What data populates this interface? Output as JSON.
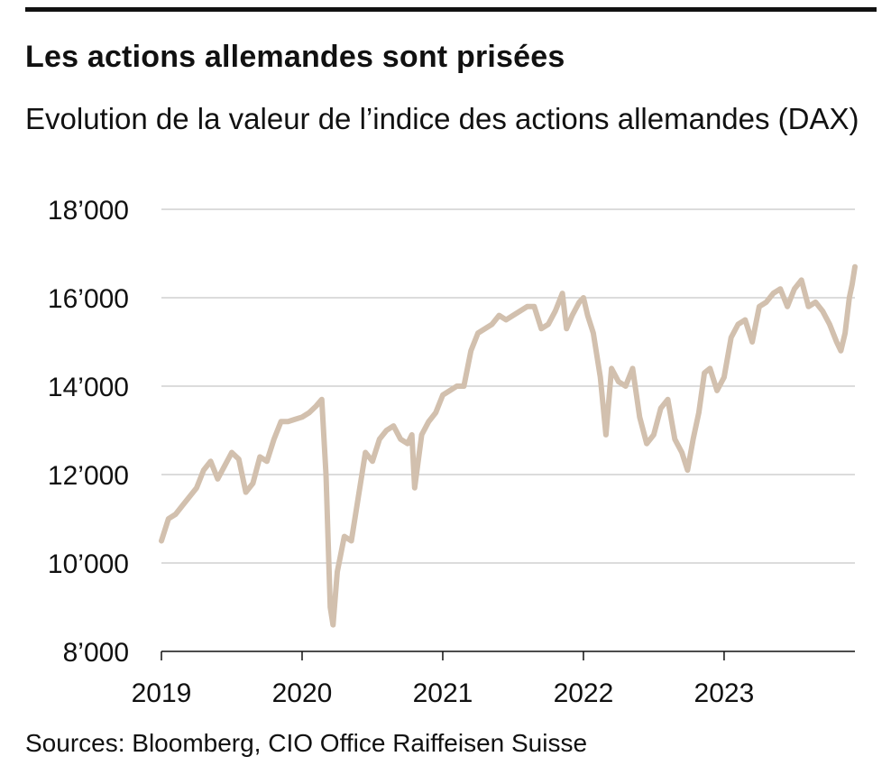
{
  "header": {
    "title": "Les actions allemandes sont prisées",
    "subtitle": "Evolution de la valeur de l’indice des actions allemandes (DAX)"
  },
  "footer": {
    "source": "Sources: Bloomberg, CIO Office Raiffeisen Suisse"
  },
  "colors": {
    "line": "#d2c0ae",
    "grid": "#c8c8c8",
    "axis": "#111111"
  },
  "chart_data": {
    "type": "line",
    "title": "Les actions allemandes sont prisées",
    "subtitle": "Evolution de la valeur de l’indice des actions allemandes (DAX)",
    "xlabel": "",
    "ylabel": "",
    "ylim": [
      8000,
      18000
    ],
    "yticks": [
      8000,
      10000,
      12000,
      14000,
      16000,
      18000
    ],
    "ytick_labels": [
      "8’000",
      "10’000",
      "12’000",
      "14’000",
      "16’000",
      "18’000"
    ],
    "xlim": [
      2019.0,
      2023.93
    ],
    "xticks": [
      2019,
      2020,
      2021,
      2022,
      2023
    ],
    "xtick_labels": [
      "2019",
      "2020",
      "2021",
      "2022",
      "2023"
    ],
    "grid": "horizontal",
    "series": [
      {
        "values": [
          [
            2019.0,
            10500
          ],
          [
            2019.05,
            11000
          ],
          [
            2019.1,
            11100
          ],
          [
            2019.15,
            11300
          ],
          [
            2019.2,
            11500
          ],
          [
            2019.25,
            11700
          ],
          [
            2019.3,
            12100
          ],
          [
            2019.35,
            12300
          ],
          [
            2019.4,
            11900
          ],
          [
            2019.45,
            12200
          ],
          [
            2019.5,
            12500
          ],
          [
            2019.55,
            12350
          ],
          [
            2019.6,
            11600
          ],
          [
            2019.65,
            11800
          ],
          [
            2019.7,
            12400
          ],
          [
            2019.75,
            12300
          ],
          [
            2019.8,
            12800
          ],
          [
            2019.85,
            13200
          ],
          [
            2019.9,
            13200
          ],
          [
            2019.95,
            13250
          ],
          [
            2020.0,
            13300
          ],
          [
            2020.05,
            13400
          ],
          [
            2020.1,
            13550
          ],
          [
            2020.14,
            13700
          ],
          [
            2020.17,
            12000
          ],
          [
            2020.2,
            9000
          ],
          [
            2020.22,
            8600
          ],
          [
            2020.25,
            9800
          ],
          [
            2020.3,
            10600
          ],
          [
            2020.35,
            10500
          ],
          [
            2020.4,
            11500
          ],
          [
            2020.45,
            12500
          ],
          [
            2020.5,
            12300
          ],
          [
            2020.55,
            12800
          ],
          [
            2020.6,
            13000
          ],
          [
            2020.65,
            13100
          ],
          [
            2020.7,
            12800
          ],
          [
            2020.75,
            12700
          ],
          [
            2020.78,
            12900
          ],
          [
            2020.8,
            11700
          ],
          [
            2020.85,
            12900
          ],
          [
            2020.9,
            13200
          ],
          [
            2020.95,
            13400
          ],
          [
            2021.0,
            13800
          ],
          [
            2021.05,
            13900
          ],
          [
            2021.1,
            14000
          ],
          [
            2021.15,
            14000
          ],
          [
            2021.2,
            14800
          ],
          [
            2021.25,
            15200
          ],
          [
            2021.3,
            15300
          ],
          [
            2021.35,
            15400
          ],
          [
            2021.4,
            15600
          ],
          [
            2021.45,
            15500
          ],
          [
            2021.5,
            15600
          ],
          [
            2021.55,
            15700
          ],
          [
            2021.6,
            15800
          ],
          [
            2021.65,
            15800
          ],
          [
            2021.7,
            15300
          ],
          [
            2021.75,
            15400
          ],
          [
            2021.8,
            15700
          ],
          [
            2021.85,
            16100
          ],
          [
            2021.88,
            15300
          ],
          [
            2021.92,
            15600
          ],
          [
            2021.97,
            15900
          ],
          [
            2022.0,
            16000
          ],
          [
            2022.03,
            15600
          ],
          [
            2022.07,
            15200
          ],
          [
            2022.12,
            14200
          ],
          [
            2022.16,
            12900
          ],
          [
            2022.2,
            14400
          ],
          [
            2022.25,
            14100
          ],
          [
            2022.3,
            14000
          ],
          [
            2022.35,
            14400
          ],
          [
            2022.4,
            13300
          ],
          [
            2022.45,
            12700
          ],
          [
            2022.5,
            12900
          ],
          [
            2022.55,
            13500
          ],
          [
            2022.6,
            13700
          ],
          [
            2022.65,
            12800
          ],
          [
            2022.7,
            12500
          ],
          [
            2022.74,
            12100
          ],
          [
            2022.78,
            12800
          ],
          [
            2022.82,
            13400
          ],
          [
            2022.86,
            14300
          ],
          [
            2022.9,
            14400
          ],
          [
            2022.95,
            13900
          ],
          [
            2023.0,
            14200
          ],
          [
            2023.05,
            15100
          ],
          [
            2023.1,
            15400
          ],
          [
            2023.15,
            15500
          ],
          [
            2023.2,
            15000
          ],
          [
            2023.25,
            15800
          ],
          [
            2023.3,
            15900
          ],
          [
            2023.35,
            16100
          ],
          [
            2023.4,
            16200
          ],
          [
            2023.45,
            15800
          ],
          [
            2023.5,
            16200
          ],
          [
            2023.55,
            16400
          ],
          [
            2023.6,
            15800
          ],
          [
            2023.65,
            15900
          ],
          [
            2023.7,
            15700
          ],
          [
            2023.75,
            15400
          ],
          [
            2023.8,
            15000
          ],
          [
            2023.83,
            14800
          ],
          [
            2023.86,
            15200
          ],
          [
            2023.89,
            16000
          ],
          [
            2023.91,
            16300
          ],
          [
            2023.93,
            16700
          ]
        ]
      }
    ]
  }
}
